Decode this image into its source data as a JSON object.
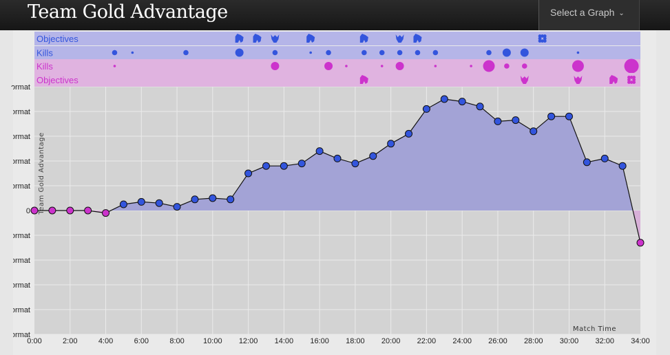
{
  "header": {
    "title": "Team Gold Advantage",
    "select_label": "Select a Graph"
  },
  "chart_data": {
    "type": "area",
    "title": "",
    "ylabel": "Team Gold Advantage",
    "xlabel": "Match Time",
    "x_unit": "minutes",
    "xlim": [
      0,
      34
    ],
    "ylim": [
      -5,
      5
    ],
    "y_tick_labels": [
      "ormat",
      "ormat",
      "ormat",
      "ormat",
      "ormat",
      "0",
      "ormat",
      "ormat",
      "ormat",
      "ormat",
      "ormat"
    ],
    "x_ticks": [
      "0:00",
      "2:00",
      "4:00",
      "6:00",
      "8:00",
      "10:00",
      "12:00",
      "14:00",
      "16:00",
      "18:00",
      "20:00",
      "22:00",
      "24:00",
      "26:00",
      "28:00",
      "30:00",
      "32:00",
      "34:00"
    ],
    "series": [
      {
        "x": [
          0,
          1,
          2,
          3,
          4,
          5,
          6,
          7,
          8,
          9,
          10,
          11,
          12,
          13,
          14,
          15,
          16,
          17,
          18,
          19,
          20,
          21,
          22,
          23,
          24,
          25,
          26,
          27,
          28,
          29,
          30,
          31,
          32,
          33,
          34
        ],
        "y": [
          0,
          0,
          0,
          0,
          -0.1,
          0.25,
          0.35,
          0.3,
          0.15,
          0.45,
          0.5,
          0.45,
          1.5,
          1.8,
          1.8,
          1.9,
          2.4,
          2.1,
          1.9,
          2.2,
          2.7,
          3.1,
          4.1,
          4.5,
          4.4,
          4.2,
          3.6,
          3.65,
          3.2,
          3.8,
          3.8,
          1.95,
          2.1,
          1.8,
          -1.3
        ]
      }
    ],
    "colors": {
      "blue_team": "#3355dd",
      "purple_team": "#cc33cc",
      "blue_fill": "#a3a3d6",
      "purple_fill": "#d8b0d8",
      "plot_bg": "#d3d3d3"
    },
    "event_rows": [
      {
        "label": "Objectives",
        "team": "blue",
        "events": [
          {
            "t": 11.5,
            "icon": "baron-icon"
          },
          {
            "t": 12.5,
            "icon": "baron-icon"
          },
          {
            "t": 13.5,
            "icon": "dragon-icon"
          },
          {
            "t": 15.5,
            "icon": "baron-icon"
          },
          {
            "t": 18.5,
            "icon": "baron-icon"
          },
          {
            "t": 20.5,
            "icon": "dragon-icon"
          },
          {
            "t": 21.5,
            "icon": "baron-icon"
          },
          {
            "t": 28.5,
            "icon": "inhibitor-icon"
          }
        ]
      },
      {
        "label": "Kills",
        "team": "blue",
        "kills": [
          {
            "t": 4.5,
            "n": 2
          },
          {
            "t": 5.5,
            "n": 1
          },
          {
            "t": 8.5,
            "n": 2
          },
          {
            "t": 11.5,
            "n": 4
          },
          {
            "t": 13.5,
            "n": 2
          },
          {
            "t": 15.5,
            "n": 1
          },
          {
            "t": 16.5,
            "n": 2
          },
          {
            "t": 18.5,
            "n": 2
          },
          {
            "t": 19.5,
            "n": 2
          },
          {
            "t": 20.5,
            "n": 2
          },
          {
            "t": 21.5,
            "n": 2
          },
          {
            "t": 22.5,
            "n": 2
          },
          {
            "t": 25.5,
            "n": 2
          },
          {
            "t": 26.5,
            "n": 4
          },
          {
            "t": 27.5,
            "n": 4
          },
          {
            "t": 30.5,
            "n": 1
          }
        ]
      },
      {
        "label": "Kills",
        "team": "purple",
        "kills": [
          {
            "t": 4.5,
            "n": 1
          },
          {
            "t": 13.5,
            "n": 4
          },
          {
            "t": 16.5,
            "n": 4
          },
          {
            "t": 17.5,
            "n": 1
          },
          {
            "t": 19.5,
            "n": 1
          },
          {
            "t": 20.5,
            "n": 4
          },
          {
            "t": 22.5,
            "n": 1
          },
          {
            "t": 24.5,
            "n": 1
          },
          {
            "t": 25.5,
            "n": 6
          },
          {
            "t": 26.5,
            "n": 2
          },
          {
            "t": 27.5,
            "n": 2
          },
          {
            "t": 30.5,
            "n": 6
          },
          {
            "t": 33.5,
            "n": 8
          }
        ]
      },
      {
        "label": "Objectives",
        "team": "purple",
        "events": [
          {
            "t": 18.5,
            "icon": "baron-icon"
          },
          {
            "t": 27.5,
            "icon": "dragon-icon"
          },
          {
            "t": 30.5,
            "icon": "dragon-icon"
          },
          {
            "t": 32.5,
            "icon": "baron-icon"
          },
          {
            "t": 33.5,
            "icon": "inhibitor-icon"
          }
        ]
      }
    ]
  }
}
